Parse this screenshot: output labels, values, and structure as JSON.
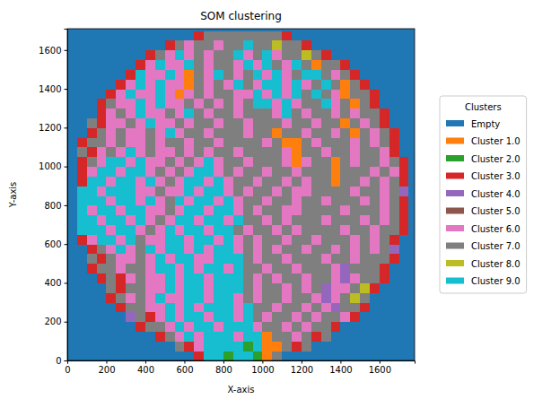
{
  "chart_data": {
    "type": "heatmap",
    "title": "SOM clustering",
    "x_label": "X-axis",
    "y_label": "Y-axis",
    "xlim": [
      0,
      1780
    ],
    "ylim": [
      0,
      1710
    ],
    "xticks": [
      0,
      200,
      400,
      600,
      800,
      1000,
      1200,
      1400,
      1600
    ],
    "yticks": [
      0,
      200,
      400,
      600,
      800,
      1000,
      1200,
      1400,
      1600
    ],
    "legend": "right",
    "legend_title": "Clusters",
    "categories": [
      "Empty",
      "Cluster 1.0",
      "Cluster 2.0",
      "Cluster 3.0",
      "Cluster 4.0",
      "Cluster 5.0",
      "Cluster 6.0",
      "Cluster 7.0",
      "Cluster 8.0",
      "Cluster 9.0"
    ],
    "colors": [
      "#1f77b4",
      "#ff7f0e",
      "#2ca02c",
      "#d62728",
      "#9467bd",
      "#8c564b",
      "#e377c2",
      "#7f7f7f",
      "#bcbd22",
      "#17becf"
    ],
    "x": [
      0,
      50,
      100,
      150,
      200,
      250,
      300,
      350,
      400,
      450,
      500,
      550,
      600,
      650,
      700,
      750,
      800,
      850,
      900,
      950,
      1000,
      1050,
      1100,
      1150,
      1200,
      1250,
      1300,
      1350,
      1400,
      1450,
      1500,
      1550,
      1600,
      1650,
      1700,
      1750
    ],
    "y": [
      0,
      50,
      100,
      150,
      200,
      250,
      300,
      350,
      400,
      450,
      500,
      550,
      600,
      650,
      700,
      750,
      800,
      850,
      900,
      950,
      1000,
      1050,
      1100,
      1150,
      1200,
      1250,
      1300,
      1350,
      1400,
      1450,
      1500,
      1550,
      1600,
      1650,
      1700
    ],
    "cells": [
      [
        0,
        0,
        0,
        0,
        0,
        0,
        0,
        0,
        0,
        0,
        0,
        0,
        0,
        3,
        9,
        9,
        2,
        9,
        9,
        2,
        1,
        7,
        0,
        0,
        0,
        0,
        0,
        0,
        0,
        0,
        0,
        0,
        0,
        0,
        0,
        0
      ],
      [
        0,
        0,
        0,
        0,
        0,
        0,
        0,
        0,
        0,
        0,
        0,
        7,
        3,
        6,
        9,
        9,
        9,
        9,
        2,
        9,
        1,
        1,
        7,
        3,
        7,
        0,
        0,
        0,
        0,
        0,
        0,
        0,
        0,
        0,
        0,
        0
      ],
      [
        0,
        0,
        0,
        0,
        0,
        0,
        0,
        0,
        0,
        3,
        7,
        6,
        9,
        6,
        9,
        9,
        9,
        6,
        9,
        9,
        1,
        7,
        7,
        6,
        7,
        3,
        7,
        0,
        0,
        0,
        0,
        0,
        0,
        0,
        0,
        0
      ],
      [
        0,
        0,
        0,
        0,
        0,
        0,
        0,
        3,
        7,
        7,
        6,
        9,
        6,
        9,
        9,
        6,
        9,
        9,
        9,
        6,
        7,
        7,
        6,
        7,
        6,
        7,
        7,
        3,
        0,
        0,
        0,
        0,
        0,
        0,
        0,
        0
      ],
      [
        0,
        0,
        0,
        0,
        0,
        0,
        4,
        7,
        3,
        6,
        9,
        6,
        9,
        9,
        6,
        9,
        9,
        6,
        9,
        7,
        6,
        7,
        7,
        6,
        7,
        6,
        7,
        7,
        6,
        3,
        0,
        0,
        0,
        0,
        0,
        0
      ],
      [
        0,
        0,
        0,
        0,
        0,
        3,
        7,
        7,
        6,
        6,
        9,
        6,
        9,
        6,
        9,
        9,
        9,
        6,
        9,
        7,
        7,
        6,
        7,
        7,
        6,
        7,
        6,
        4,
        7,
        7,
        3,
        0,
        0,
        0,
        0,
        0
      ],
      [
        0,
        0,
        0,
        0,
        3,
        7,
        6,
        7,
        6,
        9,
        6,
        6,
        9,
        9,
        6,
        9,
        9,
        6,
        7,
        6,
        7,
        7,
        6,
        7,
        7,
        6,
        4,
        6,
        7,
        8,
        7,
        0,
        0,
        0,
        0,
        0
      ],
      [
        0,
        0,
        0,
        0,
        7,
        3,
        7,
        7,
        6,
        6,
        9,
        6,
        9,
        9,
        6,
        9,
        9,
        9,
        7,
        6,
        7,
        7,
        6,
        7,
        6,
        7,
        4,
        6,
        6,
        7,
        8,
        3,
        0,
        0,
        0,
        0
      ],
      [
        0,
        0,
        0,
        3,
        7,
        3,
        6,
        7,
        6,
        6,
        9,
        6,
        9,
        9,
        6,
        9,
        9,
        9,
        7,
        6,
        7,
        6,
        7,
        7,
        6,
        7,
        7,
        6,
        4,
        6,
        7,
        7,
        3,
        0,
        0,
        0
      ],
      [
        0,
        0,
        3,
        7,
        7,
        6,
        7,
        7,
        6,
        9,
        9,
        6,
        9,
        6,
        9,
        9,
        6,
        9,
        7,
        7,
        6,
        7,
        7,
        6,
        7,
        7,
        7,
        6,
        4,
        7,
        7,
        7,
        3,
        0,
        0,
        0
      ],
      [
        0,
        0,
        7,
        3,
        7,
        6,
        6,
        7,
        6,
        9,
        6,
        9,
        9,
        6,
        6,
        9,
        9,
        9,
        7,
        6,
        7,
        7,
        6,
        7,
        7,
        7,
        6,
        7,
        7,
        6,
        7,
        7,
        7,
        3,
        0,
        0
      ],
      [
        0,
        0,
        3,
        7,
        6,
        9,
        6,
        7,
        9,
        6,
        9,
        9,
        6,
        9,
        6,
        9,
        9,
        6,
        7,
        6,
        7,
        6,
        7,
        7,
        6,
        7,
        7,
        6,
        7,
        6,
        7,
        6,
        7,
        4,
        0,
        0
      ],
      [
        0,
        3,
        6,
        9,
        9,
        6,
        9,
        7,
        6,
        6,
        9,
        9,
        6,
        9,
        9,
        6,
        9,
        6,
        7,
        6,
        7,
        7,
        6,
        7,
        7,
        6,
        7,
        7,
        7,
        6,
        7,
        6,
        7,
        3,
        0,
        0
      ],
      [
        0,
        9,
        9,
        9,
        6,
        9,
        9,
        6,
        7,
        6,
        9,
        6,
        9,
        9,
        6,
        9,
        9,
        7,
        6,
        7,
        7,
        6,
        7,
        6,
        7,
        7,
        7,
        7,
        6,
        7,
        7,
        6,
        7,
        7,
        3,
        0
      ],
      [
        0,
        9,
        9,
        6,
        9,
        9,
        6,
        9,
        6,
        7,
        6,
        9,
        9,
        6,
        9,
        9,
        6,
        9,
        7,
        7,
        6,
        7,
        6,
        7,
        7,
        7,
        6,
        7,
        7,
        7,
        6,
        7,
        6,
        7,
        3,
        0
      ],
      [
        0,
        9,
        6,
        9,
        9,
        6,
        9,
        9,
        6,
        6,
        7,
        6,
        9,
        9,
        6,
        9,
        9,
        6,
        7,
        6,
        7,
        7,
        6,
        6,
        7,
        7,
        7,
        7,
        6,
        7,
        7,
        7,
        6,
        7,
        3,
        0
      ],
      [
        0,
        9,
        9,
        9,
        6,
        9,
        9,
        6,
        9,
        6,
        7,
        9,
        6,
        9,
        9,
        6,
        9,
        6,
        7,
        7,
        6,
        7,
        7,
        6,
        7,
        7,
        6,
        7,
        7,
        7,
        6,
        7,
        6,
        7,
        3,
        0
      ],
      [
        0,
        9,
        9,
        6,
        9,
        9,
        9,
        6,
        6,
        7,
        6,
        6,
        9,
        6,
        9,
        9,
        6,
        7,
        6,
        7,
        7,
        6,
        7,
        6,
        6,
        7,
        7,
        7,
        7,
        6,
        7,
        7,
        6,
        7,
        4,
        0
      ],
      [
        0,
        3,
        9,
        9,
        6,
        9,
        9,
        6,
        9,
        6,
        7,
        6,
        9,
        9,
        6,
        9,
        6,
        7,
        7,
        6,
        7,
        7,
        6,
        7,
        6,
        7,
        7,
        1,
        7,
        7,
        6,
        7,
        6,
        7,
        3,
        0
      ],
      [
        0,
        3,
        6,
        9,
        9,
        6,
        9,
        9,
        6,
        7,
        6,
        7,
        6,
        9,
        9,
        6,
        7,
        6,
        7,
        7,
        6,
        7,
        7,
        6,
        7,
        7,
        7,
        1,
        7,
        7,
        7,
        6,
        7,
        6,
        3,
        0
      ],
      [
        0,
        3,
        7,
        6,
        9,
        9,
        6,
        9,
        6,
        6,
        7,
        6,
        7,
        6,
        9,
        6,
        7,
        7,
        6,
        7,
        7,
        7,
        6,
        1,
        6,
        7,
        7,
        1,
        7,
        6,
        7,
        7,
        6,
        7,
        3,
        0
      ],
      [
        0,
        7,
        3,
        6,
        7,
        6,
        9,
        6,
        7,
        6,
        6,
        7,
        6,
        7,
        6,
        7,
        7,
        6,
        7,
        7,
        7,
        7,
        6,
        1,
        7,
        7,
        6,
        7,
        7,
        6,
        7,
        7,
        6,
        3,
        0,
        0
      ],
      [
        0,
        3,
        7,
        7,
        6,
        7,
        6,
        6,
        7,
        6,
        7,
        7,
        6,
        7,
        7,
        6,
        7,
        7,
        7,
        7,
        6,
        7,
        1,
        1,
        7,
        6,
        7,
        7,
        7,
        6,
        7,
        6,
        7,
        3,
        0,
        0
      ],
      [
        0,
        0,
        3,
        7,
        6,
        7,
        6,
        6,
        7,
        6,
        9,
        6,
        7,
        7,
        6,
        7,
        7,
        7,
        6,
        7,
        7,
        1,
        7,
        7,
        6,
        7,
        7,
        6,
        7,
        1,
        7,
        6,
        7,
        3,
        0,
        0
      ],
      [
        0,
        0,
        7,
        3,
        6,
        6,
        7,
        6,
        9,
        6,
        6,
        7,
        6,
        7,
        7,
        6,
        7,
        7,
        6,
        7,
        7,
        7,
        6,
        7,
        7,
        6,
        7,
        7,
        1,
        7,
        6,
        7,
        3,
        0,
        0,
        0
      ],
      [
        0,
        0,
        0,
        3,
        6,
        7,
        6,
        9,
        6,
        6,
        7,
        6,
        9,
        7,
        6,
        7,
        7,
        6,
        7,
        7,
        7,
        6,
        9,
        7,
        6,
        7,
        7,
        6,
        7,
        6,
        7,
        7,
        3,
        0,
        0,
        0
      ],
      [
        0,
        0,
        0,
        3,
        7,
        6,
        6,
        9,
        6,
        9,
        6,
        6,
        7,
        6,
        7,
        6,
        7,
        6,
        7,
        9,
        9,
        6,
        9,
        6,
        7,
        7,
        9,
        6,
        7,
        1,
        7,
        3,
        0,
        0,
        0,
        0
      ],
      [
        0,
        0,
        0,
        0,
        3,
        6,
        9,
        6,
        6,
        9,
        6,
        1,
        6,
        7,
        6,
        7,
        7,
        6,
        6,
        9,
        6,
        9,
        6,
        9,
        7,
        9,
        7,
        6,
        1,
        7,
        7,
        3,
        0,
        0,
        0,
        0
      ],
      [
        0,
        0,
        0,
        0,
        0,
        3,
        6,
        9,
        6,
        9,
        6,
        6,
        1,
        7,
        6,
        7,
        6,
        9,
        7,
        6,
        9,
        9,
        6,
        9,
        6,
        7,
        9,
        7,
        1,
        7,
        3,
        0,
        0,
        0,
        0,
        0
      ],
      [
        0,
        0,
        0,
        0,
        0,
        0,
        3,
        9,
        6,
        6,
        9,
        6,
        1,
        7,
        6,
        9,
        7,
        6,
        7,
        9,
        6,
        9,
        6,
        7,
        9,
        9,
        7,
        6,
        7,
        3,
        0,
        0,
        0,
        0,
        0,
        0
      ],
      [
        0,
        0,
        0,
        0,
        0,
        0,
        0,
        3,
        6,
        9,
        6,
        6,
        9,
        7,
        6,
        7,
        7,
        6,
        9,
        6,
        9,
        7,
        6,
        9,
        7,
        1,
        7,
        7,
        3,
        0,
        0,
        0,
        0,
        0,
        0,
        0
      ],
      [
        0,
        0,
        0,
        0,
        0,
        0,
        0,
        0,
        3,
        7,
        6,
        9,
        6,
        7,
        6,
        7,
        7,
        9,
        6,
        7,
        9,
        6,
        7,
        7,
        8,
        7,
        3,
        0,
        0,
        0,
        0,
        0,
        0,
        0,
        0,
        0
      ],
      [
        0,
        0,
        0,
        0,
        0,
        0,
        0,
        0,
        0,
        0,
        3,
        7,
        6,
        7,
        7,
        6,
        7,
        7,
        9,
        7,
        7,
        8,
        7,
        7,
        3,
        0,
        0,
        0,
        0,
        0,
        0,
        0,
        0,
        0,
        0,
        0
      ],
      [
        0,
        0,
        0,
        0,
        0,
        0,
        0,
        0,
        0,
        0,
        0,
        0,
        0,
        3,
        7,
        7,
        7,
        7,
        7,
        7,
        7,
        7,
        3,
        0,
        0,
        0,
        0,
        0,
        0,
        0,
        0,
        0,
        0,
        0,
        0,
        0
      ],
      [
        0,
        0,
        0,
        0,
        0,
        0,
        0,
        0,
        0,
        0,
        0,
        0,
        0,
        0,
        0,
        0,
        0,
        0,
        0,
        0,
        0,
        0,
        0,
        0,
        0,
        0,
        0,
        0,
        0,
        0,
        0,
        0,
        0,
        0,
        0,
        0
      ]
    ]
  }
}
